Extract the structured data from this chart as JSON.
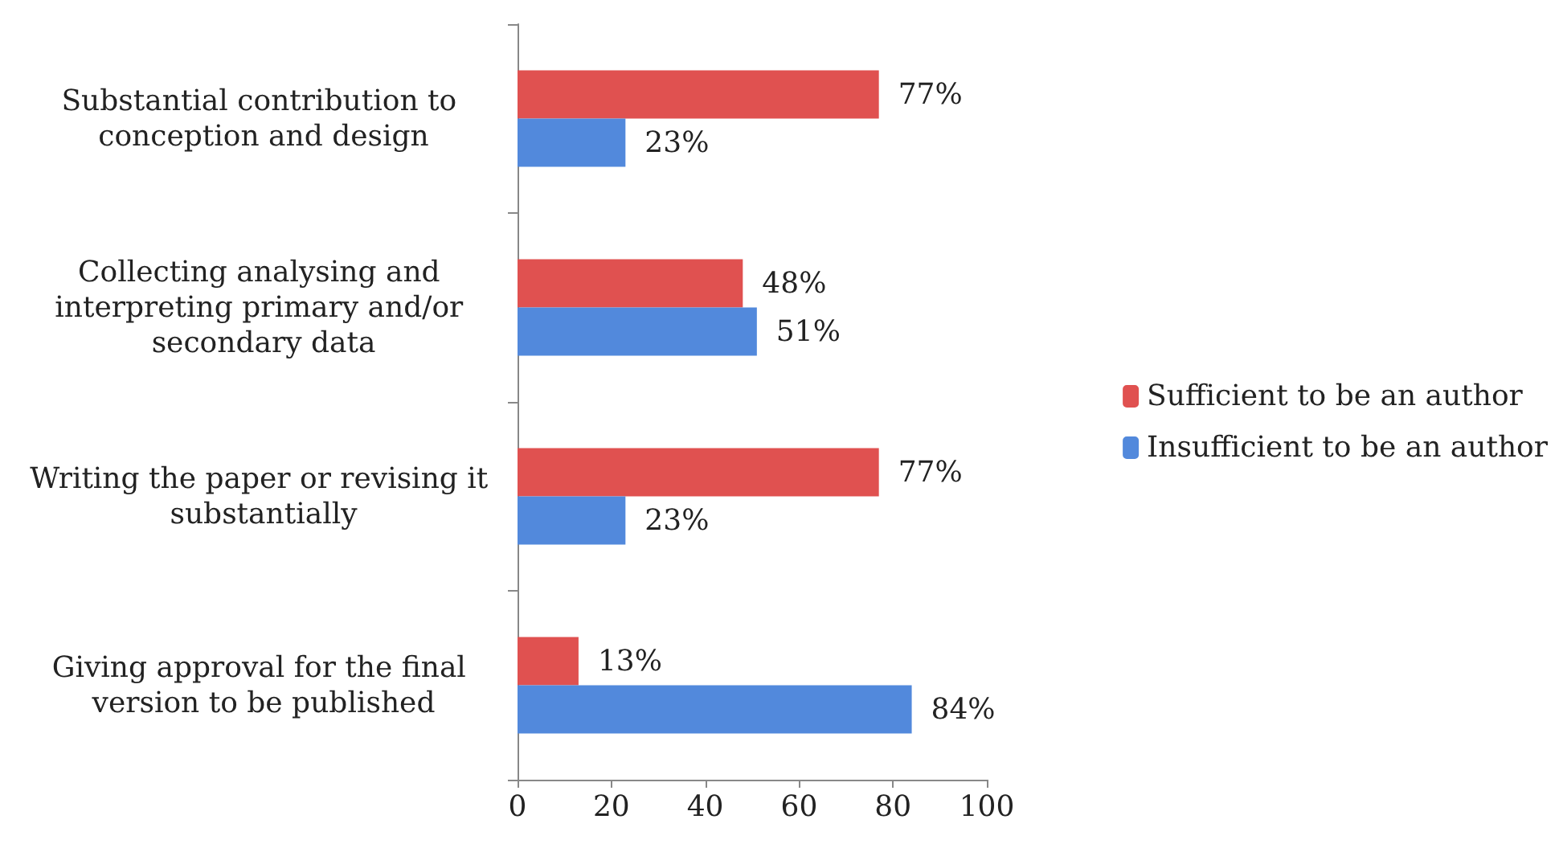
{
  "chart_data": {
    "type": "bar",
    "orientation": "horizontal",
    "categories": [
      "Substantial contribution to conception and design",
      "Collecting analysing and interpreting primary and/or secondary data",
      "Writing the paper or revising it substantially",
      "Giving approval for the final version to be published"
    ],
    "series": [
      {
        "name": "Sufficient to be an author",
        "color": "#e05150",
        "values": [
          77,
          48,
          77,
          13
        ],
        "value_labels": [
          "77%",
          "48%",
          "77%",
          "13%"
        ]
      },
      {
        "name": "Insufficient to be an author",
        "color": "#5289dc",
        "values": [
          23,
          51,
          23,
          84
        ],
        "value_labels": [
          "23%",
          "51%",
          "23%",
          "84%"
        ]
      }
    ],
    "xlim": [
      0,
      100
    ],
    "xticks": [
      0,
      20,
      40,
      60,
      80,
      100
    ],
    "grid": false,
    "legend": "right"
  }
}
